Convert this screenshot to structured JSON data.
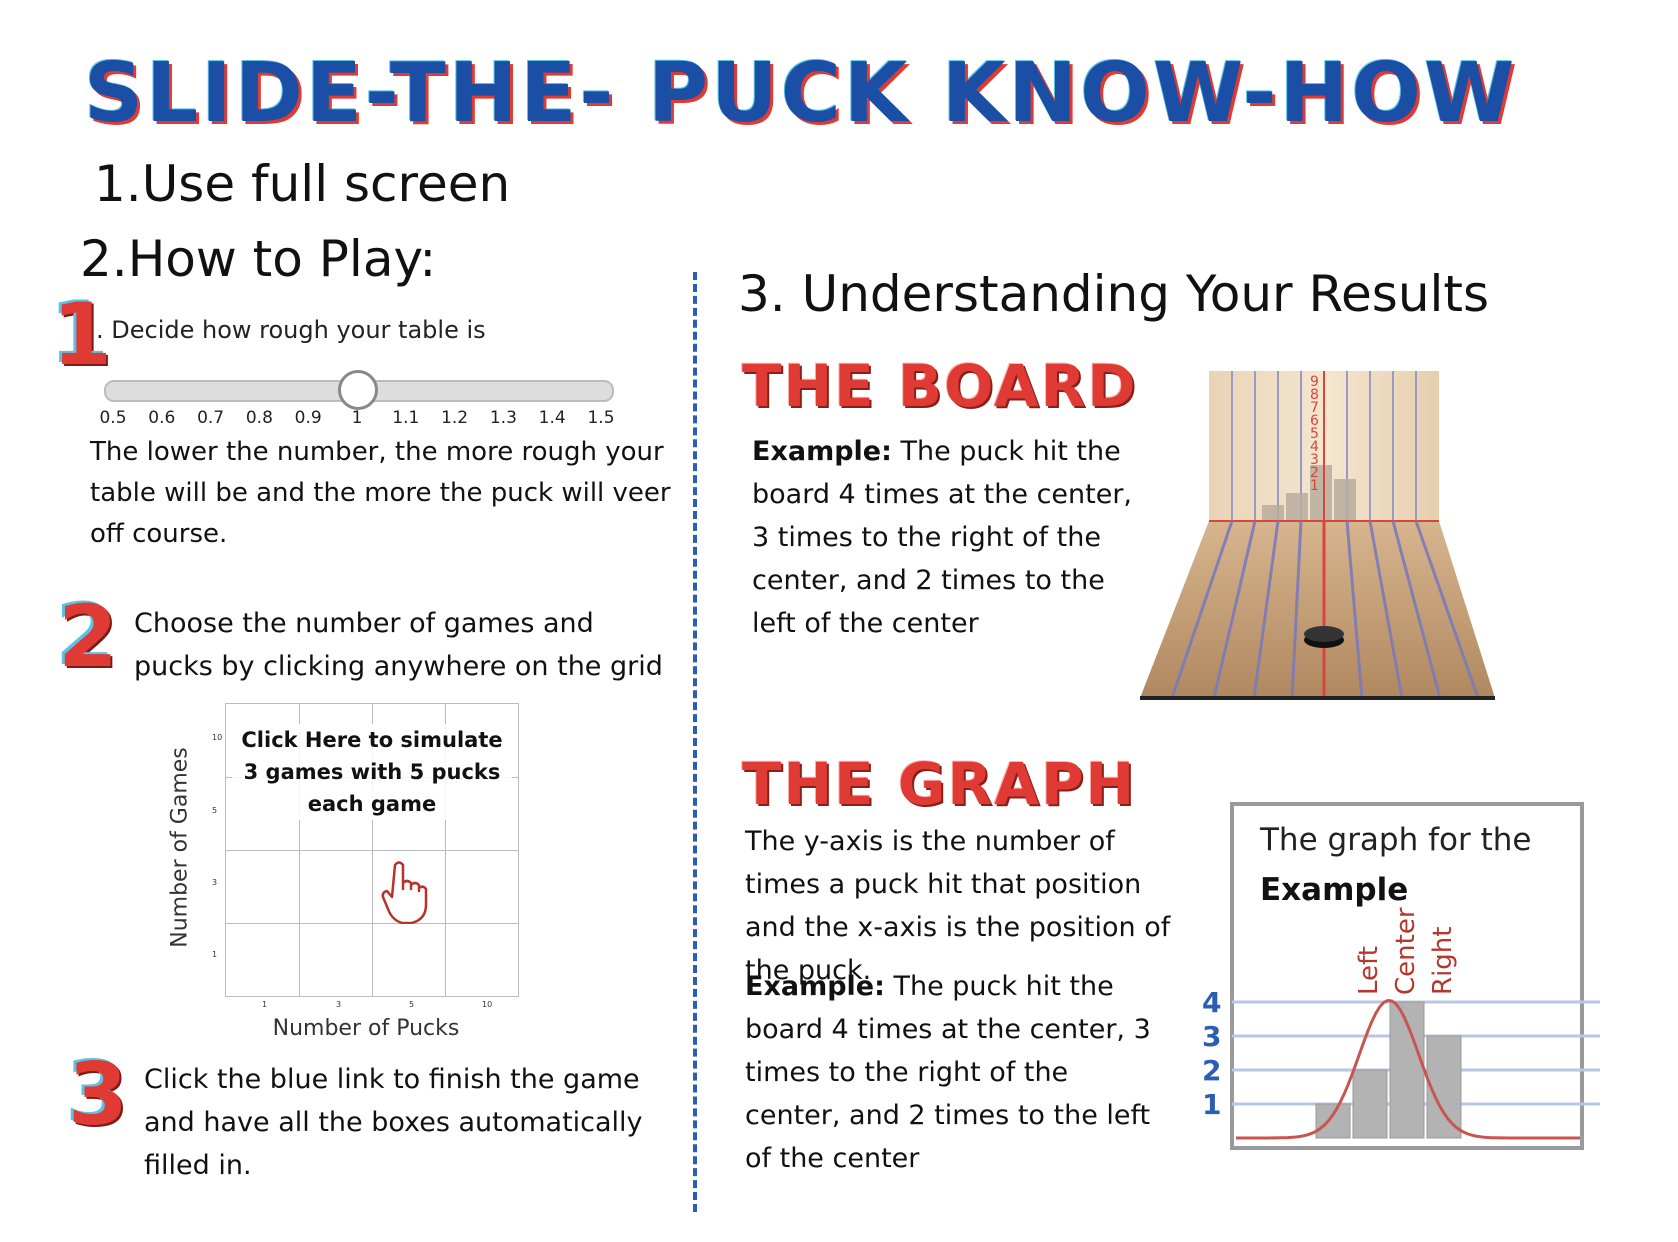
{
  "title": "SLIDE-THE- PUCK KNOW-HOW",
  "step1": "1.Use full screen",
  "step2": "2.How to Play:",
  "step3": "3. Understanding Your Results",
  "how_to_play": {
    "item1": {
      "number": "1",
      "prompt": ". Decide how rough your table is",
      "slider_ticks": [
        "0.5",
        "0.6",
        "0.7",
        "0.8",
        "0.9",
        "1",
        "1.1",
        "1.2",
        "1.3",
        "1.4",
        "1.5"
      ],
      "slider_value": 1,
      "description": "The lower the number, the more rough your table will be and the more the puck will veer off course."
    },
    "item2": {
      "number": "2",
      "description": "Choose the number of games and pucks by clicking anywhere on the grid",
      "grid": {
        "y_label": "Number of Games",
        "x_label": "Number of Pucks",
        "y_ticks": [
          "10",
          "5",
          "3",
          "1"
        ],
        "x_ticks": [
          "1",
          "3",
          "5",
          "10"
        ],
        "callout": "Click Here to simulate 3 games with 5 pucks each game"
      }
    },
    "item3": {
      "number": "3",
      "description": "Click the blue link to finish the game and have all the boxes automatically filled in."
    }
  },
  "board_section": {
    "heading": "THE BOARD",
    "example_label": "Example:",
    "example_text": " The puck hit the board 4 times  at the center, 3 times to the right of the center, and 2 times to the left of the center",
    "counter_digits": [
      "9",
      "8",
      "7",
      "6",
      "5",
      "4",
      "3",
      "2",
      "1"
    ]
  },
  "graph_section": {
    "heading": "THE GRAPH",
    "explanation": "The y-axis is the number of times a puck hit that position and the x-axis is the position of the puck.",
    "example_label": "Example:",
    "example_text": " The puck hit the board 4 times  at the center, 3 times to the right of the center, and 2 times to the left of the center",
    "graph_title_line1": "The graph for the",
    "graph_title_line2": "Example",
    "position_labels": [
      "Left",
      "Center",
      "Right"
    ],
    "y_ticks": [
      "4",
      "3",
      "2",
      "1"
    ],
    "bars": [
      1,
      2,
      4,
      3
    ]
  },
  "colors": {
    "title_blue": "#1b4fa6",
    "accent_red": "#e03a34",
    "divider_blue": "#2b5db5"
  }
}
